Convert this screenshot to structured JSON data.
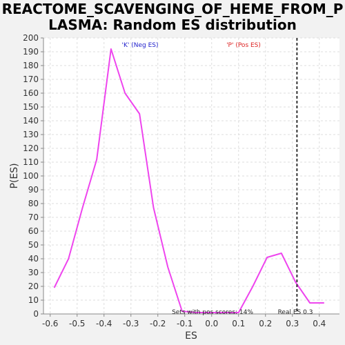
{
  "chart_data": {
    "type": "line",
    "title": "REACTOME_SCAVENGING_OF_HEME_FROM_P\nLASMA: Random ES distribution",
    "xlabel": "ES",
    "ylabel": "P(ES)",
    "xlim": [
      -0.625,
      0.475
    ],
    "ylim": [
      0,
      200
    ],
    "x_ticks": [
      -0.6,
      -0.5,
      -0.4,
      -0.3,
      -0.2,
      -0.1,
      0.0,
      0.1,
      0.2,
      0.3,
      0.4
    ],
    "x_tick_labels": [
      "-0.6",
      "-0.5",
      "-0.4",
      "-0.3",
      "-0.2",
      "-0.1",
      "0.0",
      "0.1",
      "0.2",
      "0.3",
      "0.4"
    ],
    "y_ticks": [
      0,
      10,
      20,
      30,
      40,
      50,
      60,
      70,
      80,
      90,
      100,
      110,
      120,
      130,
      140,
      150,
      160,
      170,
      180,
      190,
      200
    ],
    "grid": true,
    "series": [
      {
        "color": "#ee44ee",
        "x": [
          -0.585,
          -0.532,
          -0.48,
          -0.427,
          -0.374,
          -0.322,
          -0.268,
          -0.216,
          -0.163,
          -0.11,
          -0.058,
          -0.005,
          0.048,
          0.1,
          0.153,
          0.206,
          0.259,
          0.312,
          0.365,
          0.418
        ],
        "y": [
          19,
          40,
          77,
          112,
          192,
          160,
          145,
          77,
          34,
          2,
          1,
          1,
          1,
          1,
          20,
          41,
          44,
          23,
          8,
          8
        ]
      }
    ],
    "real_es": 0.317,
    "annotations": {
      "neg_label": "'K' (Neg ES)",
      "pos_label": "'P' (Pos ES)",
      "sets_pos": "Sets with pos scores: 14%",
      "real_es_label": "Real ES 0.3"
    },
    "colors": {
      "neg_label": "#2222cc",
      "pos_label": "#dd2222",
      "real_es_line": "#333333"
    }
  }
}
